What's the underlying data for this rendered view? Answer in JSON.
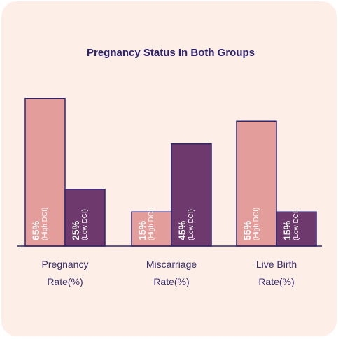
{
  "chart_data": {
    "type": "bar",
    "title": "Pregnancy Status In Both Groups",
    "categories": [
      [
        "Pregnancy",
        "Rate(%)"
      ],
      [
        "Miscarriage",
        "Rate(%)"
      ],
      [
        "Live Birth",
        "Rate(%)"
      ]
    ],
    "series": [
      {
        "name": "(High DCI)",
        "values": [
          65,
          15,
          55
        ],
        "color": "#e39d9b",
        "labels": [
          "65%",
          "15%",
          "55%"
        ]
      },
      {
        "name": "(Low DCI)",
        "values": [
          25,
          45,
          15
        ],
        "color": "#6e3a6e",
        "labels": [
          "25%",
          "45%",
          "15%"
        ]
      }
    ],
    "ylim": [
      0,
      70
    ],
    "grid": false,
    "axis_color": "#2f2470"
  }
}
